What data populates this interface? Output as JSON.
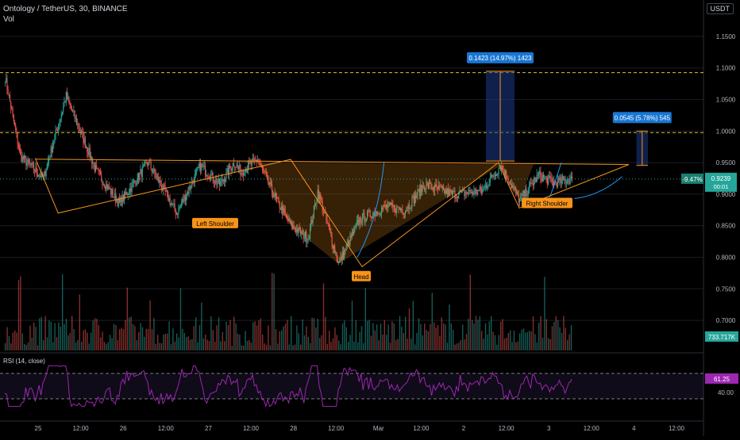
{
  "header": {
    "title": "Ontology / TetherUS, 30, BINANCE",
    "vol_label": "Vol",
    "currency": "USDT"
  },
  "colors": {
    "up": "#26a69a",
    "down": "#ef5350",
    "pattern": "#f7931a",
    "rsi": "#9c27b0",
    "measure": "#2962ff"
  },
  "chart_data": {
    "type": "candlestick",
    "price_axis": {
      "ticks": [
        "1.1500",
        "1.1000",
        "1.0500",
        "1.0000",
        "0.9500",
        "0.9000",
        "0.8500",
        "0.8000",
        "0.7500",
        "0.7000"
      ],
      "range": [
        0.68,
        1.17
      ]
    },
    "x_ticks": [
      "25",
      "12:00",
      "26",
      "12:00",
      "27",
      "12:00",
      "28",
      "12:00",
      "Mar",
      "12:00",
      "2",
      "12:00",
      "3",
      "12:00",
      "4",
      "12:00"
    ],
    "current_price": "0.9239",
    "current_change": "-9.47%",
    "countdown": "00:01",
    "volume_value": "733.717K",
    "rsi_label": "RSI (14, close)",
    "rsi_value": "61.25",
    "rsi_tick": "40.00",
    "rsi_bands": [
      70,
      30
    ],
    "resistance_levels": [
      1.0925,
      0.9975
    ],
    "neckline": 0.9555,
    "annotations": {
      "left_shoulder": "Left Shoulder",
      "head": "Head",
      "right_shoulder": "Right Shoulder",
      "measure_big": "0.1423 (14.97%) 1423",
      "measure_small": "0.0545 (5.78%) 545"
    },
    "key_points": [
      {
        "t": 0,
        "p": 1.085
      },
      {
        "t": 16,
        "p": 0.96
      },
      {
        "t": 40,
        "p": 0.925
      },
      {
        "t": 64,
        "p": 1.055
      },
      {
        "t": 96,
        "p": 0.935
      },
      {
        "t": 120,
        "p": 0.885
      },
      {
        "t": 150,
        "p": 0.95
      },
      {
        "t": 180,
        "p": 0.87
      },
      {
        "t": 205,
        "p": 0.945
      },
      {
        "t": 225,
        "p": 0.915
      },
      {
        "t": 240,
        "p": 0.95
      },
      {
        "t": 248,
        "p": 0.935
      },
      {
        "t": 265,
        "p": 0.955
      },
      {
        "t": 283,
        "p": 0.895
      },
      {
        "t": 300,
        "p": 0.85
      },
      {
        "t": 318,
        "p": 0.83
      },
      {
        "t": 328,
        "p": 0.905
      },
      {
        "t": 350,
        "p": 0.79
      },
      {
        "t": 372,
        "p": 0.86
      },
      {
        "t": 400,
        "p": 0.88
      },
      {
        "t": 420,
        "p": 0.875
      },
      {
        "t": 440,
        "p": 0.915
      },
      {
        "t": 470,
        "p": 0.9
      },
      {
        "t": 500,
        "p": 0.905
      },
      {
        "t": 520,
        "p": 0.945
      },
      {
        "t": 540,
        "p": 0.89
      },
      {
        "t": 560,
        "p": 0.93
      },
      {
        "t": 575,
        "p": 0.918
      },
      {
        "t": 595,
        "p": 0.924
      }
    ]
  }
}
